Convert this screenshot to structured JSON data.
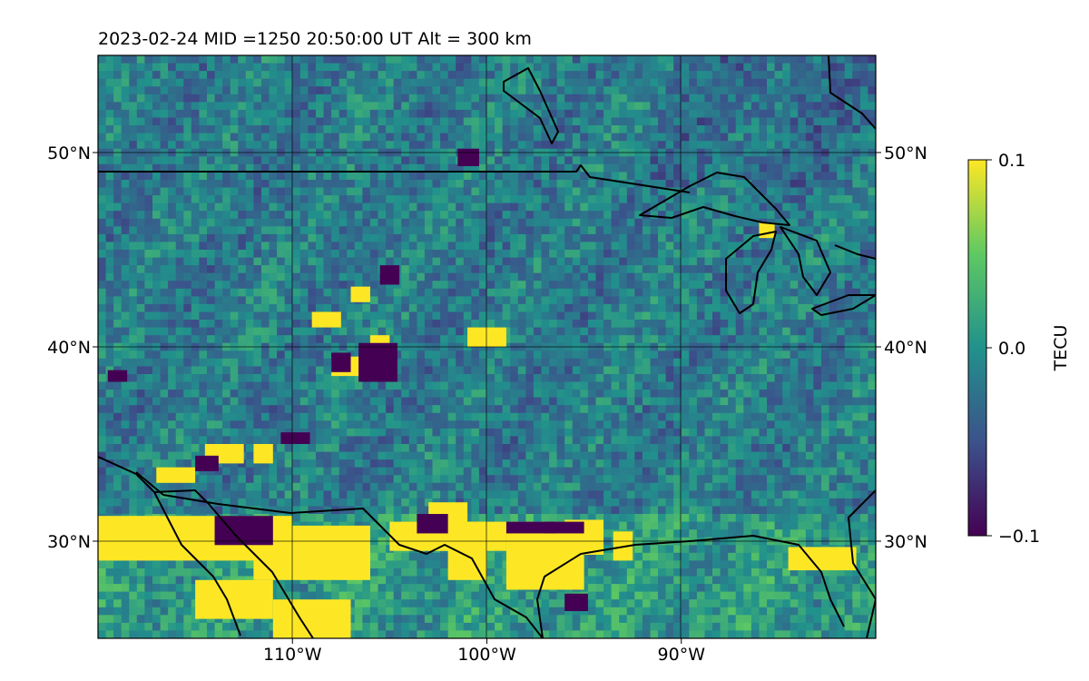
{
  "title": "2023-02-24  MID =1250    20:50:00  UT  Alt = 300 km",
  "colorbar": {
    "label": "TECU",
    "ticks": [
      "−0.1",
      "0.0",
      "0.1"
    ],
    "stops": [
      "#440154",
      "#3b528b",
      "#21918c",
      "#5ec962",
      "#fde725"
    ]
  },
  "chart_data": {
    "type": "heatmap",
    "title": "2023-02-24  MID =1250    20:50:00  UT  Alt = 300 km",
    "xlabel": "",
    "ylabel": "",
    "colorbar_label": "TECU",
    "value_range": [
      -0.1,
      0.1
    ],
    "colormap": "viridis",
    "x_range_lon": [
      -120,
      -80
    ],
    "y_range_lat": [
      25,
      55
    ],
    "x_ticks": [
      {
        "lon": -110,
        "label": "110°W"
      },
      {
        "lon": -100,
        "label": "100°W"
      },
      {
        "lon": -90,
        "label": "90°W"
      }
    ],
    "y_ticks": [
      {
        "lat": 30,
        "label": "30°N"
      },
      {
        "lat": 40,
        "label": "40°N"
      },
      {
        "lat": 50,
        "label": "50°N"
      }
    ],
    "grid": true,
    "map_features": [
      "coastlines",
      "country borders",
      "Great Lakes"
    ]
  }
}
